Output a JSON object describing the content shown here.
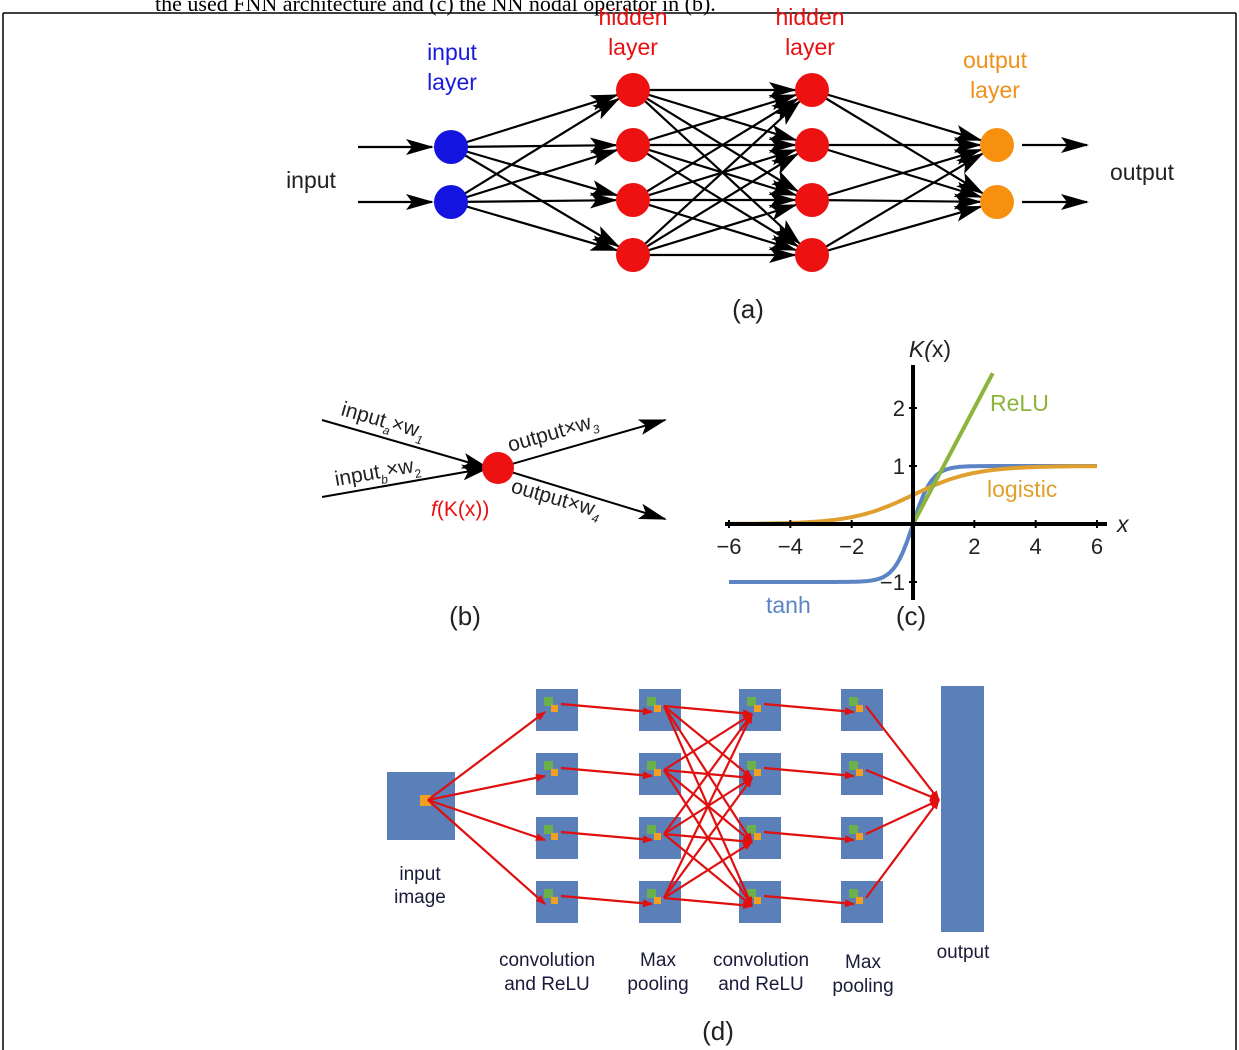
{
  "caption": "the used FNN architecture and (c) the NN nodal operator in (b).",
  "panel_a": {
    "input_label": "input",
    "output_label": "output",
    "input_layer": [
      "input",
      "layer"
    ],
    "hidden_layer_1": [
      "hidden",
      "layer"
    ],
    "hidden_layer_2": [
      "hidden",
      "layer"
    ],
    "output_layer": [
      "output",
      "layer"
    ],
    "panel_label": "(a)"
  },
  "panel_b": {
    "in_a": "input",
    "in_a_sub": "a",
    "w1": "×w",
    "w1_sub": "1",
    "in_b": "input",
    "in_b_sub": "b",
    "w2": "×w",
    "w2_sub": "2",
    "out3": "output×w",
    "out3_sub": "3",
    "out4": "output×w",
    "out4_sub": "4",
    "node_f": "f",
    "node_rest": "(K(x))",
    "panel_label": "(b)"
  },
  "panel_c": {
    "ylabel_italic": "K(",
    "ylabel_rest": "x)",
    "xlabel": "x",
    "panel_label": "(c)",
    "colors": {
      "relu": "#8db43b",
      "logistic": "#e0a030",
      "tanh": "#5b84c4"
    }
  },
  "panel_d": {
    "input_image": [
      "input",
      "image"
    ],
    "conv1": [
      "convolution",
      "and ReLU"
    ],
    "pool1": [
      "Max",
      "pooling"
    ],
    "conv2": [
      "convolution",
      "and ReLU"
    ],
    "pool2": [
      "Max",
      "pooling"
    ],
    "output": "output",
    "panel_label": "(d)"
  },
  "chart_data": {
    "type": "line",
    "x": [
      -6,
      -5,
      -4,
      -3,
      -2,
      -1.5,
      -1,
      -0.5,
      0,
      0.5,
      1,
      1.5,
      2,
      3,
      4,
      5,
      6
    ],
    "series": [
      {
        "name": "ReLU",
        "values": [
          0,
          0,
          0,
          0,
          0,
          0,
          0,
          0,
          0,
          0.5,
          1,
          1.5,
          2,
          null,
          null,
          null,
          null
        ]
      },
      {
        "name": "logistic",
        "values": [
          0.002,
          0.007,
          0.018,
          0.047,
          0.119,
          0.182,
          0.269,
          0.378,
          0.5,
          0.622,
          0.731,
          0.818,
          0.881,
          0.953,
          0.982,
          0.993,
          0.998
        ]
      },
      {
        "name": "tanh",
        "values": [
          -1,
          -1,
          -0.999,
          -0.995,
          -0.964,
          -0.905,
          -0.762,
          -0.462,
          0,
          0.462,
          0.762,
          0.905,
          0.964,
          0.995,
          0.999,
          1,
          1
        ]
      }
    ],
    "xlim": [
      -6,
      6
    ],
    "ylim": [
      -1,
      2.5
    ],
    "xticks": [
      "−6",
      "−4",
      "−2",
      "2",
      "4",
      "6"
    ],
    "yticks": [
      "−1",
      "1",
      "2"
    ],
    "ylabel": "K(x)",
    "xlabel": "x"
  }
}
